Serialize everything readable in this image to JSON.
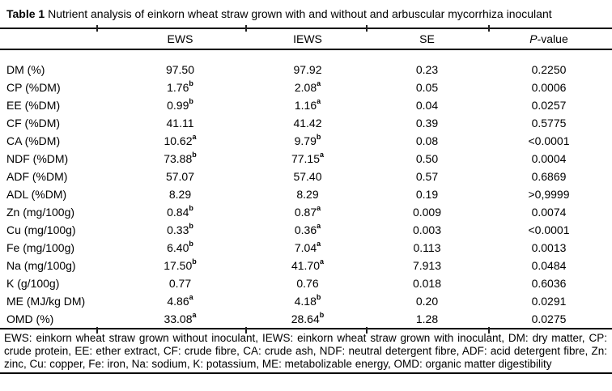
{
  "title": {
    "label_bold": "Table 1",
    "text": "Nutrient analysis of einkorn wheat straw grown with and without and arbuscular mycorrhiza inoculant"
  },
  "table": {
    "headers": {
      "row_label": "",
      "ews": "EWS",
      "iews": "IEWS",
      "se": "SE",
      "p_italic": "P",
      "p_rest": "-value"
    },
    "rows": [
      {
        "label": "DM (%)",
        "ews": "97.50",
        "ews_sup": "",
        "iews": "97.92",
        "iews_sup": "",
        "se": "0.23",
        "p": "0.2250"
      },
      {
        "label": "CP (%DM)",
        "ews": "1.76",
        "ews_sup": "b",
        "iews": "2.08",
        "iews_sup": "a",
        "se": "0.05",
        "p": "0.0006"
      },
      {
        "label": "EE (%DM)",
        "ews": "0.99",
        "ews_sup": "b",
        "iews": "1.16",
        "iews_sup": "a",
        "se": "0.04",
        "p": "0.0257"
      },
      {
        "label": "CF (%DM)",
        "ews": "41.11",
        "ews_sup": "",
        "iews": "41.42",
        "iews_sup": "",
        "se": "0.39",
        "p": "0.5775"
      },
      {
        "label": "CA (%DM)",
        "ews": "10.62",
        "ews_sup": "a",
        "iews": "9.79",
        "iews_sup": "b",
        "se": "0.08",
        "p": "<0.0001"
      },
      {
        "label": "NDF (%DM)",
        "ews": "73.88",
        "ews_sup": "b",
        "iews": "77.15",
        "iews_sup": "a",
        "se": "0.50",
        "p": "0.0004"
      },
      {
        "label": "ADF (%DM)",
        "ews": "57.07",
        "ews_sup": "",
        "iews": "57.40",
        "iews_sup": "",
        "se": "0.57",
        "p": "0.6869"
      },
      {
        "label": "ADL (%DM)",
        "ews": "8.29",
        "ews_sup": "",
        "iews": "8.29",
        "iews_sup": "",
        "se": "0.19",
        "p": ">0,9999"
      },
      {
        "label": "Zn (mg/100g)",
        "ews": "0.84",
        "ews_sup": "b",
        "iews": "0.87",
        "iews_sup": "a",
        "se": "0.009",
        "p": "0.0074"
      },
      {
        "label": "Cu (mg/100g)",
        "ews": "0.33",
        "ews_sup": "b",
        "iews": "0.36",
        "iews_sup": "a",
        "se": "0.003",
        "p": "<0.0001"
      },
      {
        "label": "Fe (mg/100g)",
        "ews": "6.40",
        "ews_sup": "b",
        "iews": "7.04",
        "iews_sup": "a",
        "se": "0.113",
        "p": "0.0013"
      },
      {
        "label": "Na (mg/100g)",
        "ews": "17.50",
        "ews_sup": "b",
        "iews": "41.70",
        "iews_sup": "a",
        "se": "7.913",
        "p": "0.0484"
      },
      {
        "label": "K (g/100g)",
        "ews": "0.77",
        "ews_sup": "",
        "iews": "0.76",
        "iews_sup": "",
        "se": "0.018",
        "p": "0.6036"
      },
      {
        "label": "ME (MJ/kg DM)",
        "ews": "4.86",
        "ews_sup": "a",
        "iews": "4.18",
        "iews_sup": "b",
        "se": "0.20",
        "p": "0.0291"
      },
      {
        "label": "OMD (%)",
        "ews": "33.08",
        "ews_sup": "a",
        "iews": "28.64",
        "iews_sup": "b",
        "se": "1.28",
        "p": "0.0275"
      }
    ]
  },
  "footnote": "EWS: einkorn wheat straw grown without inoculant, IEWS: einkorn wheat straw grown with inoculant, DM: dry matter, CP: crude protein, EE: ether extract, CF: crude fibre, CA: crude ash, NDF: neutral detergent fibre, ADF: acid detergent fibre, Zn: zinc, Cu: copper, Fe: iron, Na: sodium, K: potassium, ME: metabolizable energy, OMD: organic matter digestibility",
  "colors": {
    "text": "#000000",
    "background": "#ffffff",
    "rule": "#000000"
  }
}
